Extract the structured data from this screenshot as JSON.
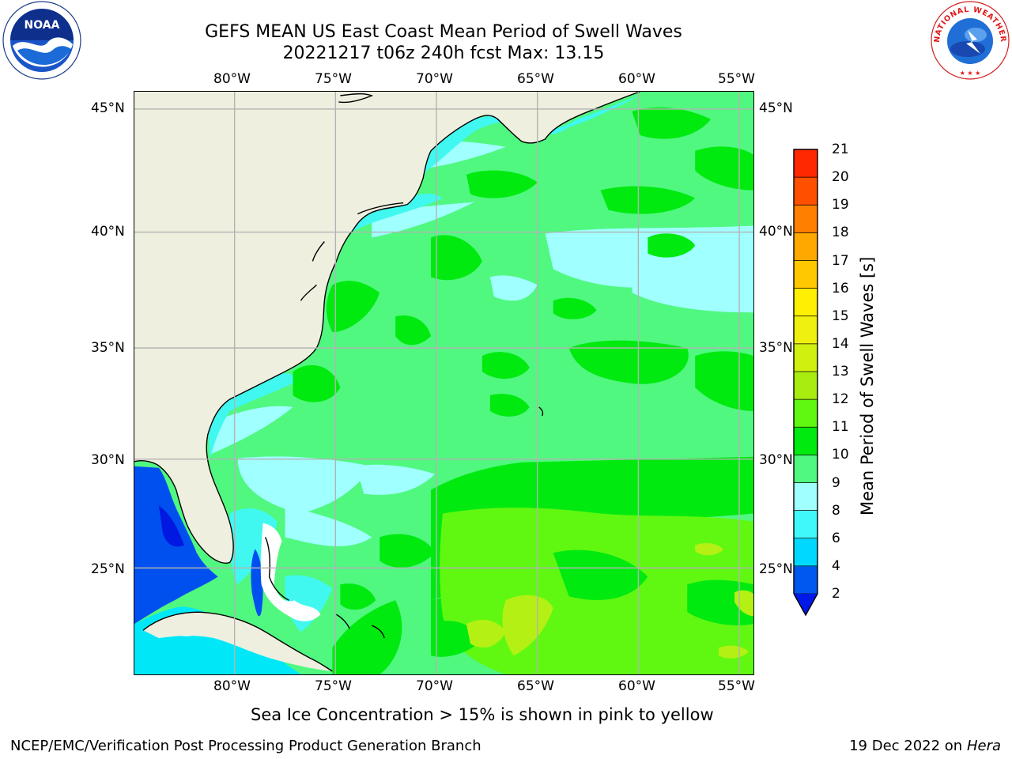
{
  "header": {
    "title_line1": "GEFS MEAN US East Coast Mean Period of Swell Waves",
    "title_line2": "20221217 t06z 240h fcst   Max: 13.15"
  },
  "logos": {
    "noaa": {
      "text": "NOAA"
    },
    "nws": {
      "text": "NATIONAL WEATHER SERVICE"
    }
  },
  "map": {
    "lon_labels": [
      "80°W",
      "75°W",
      "70°W",
      "65°W",
      "60°W",
      "55°W"
    ],
    "lat_labels": [
      "45°N",
      "40°N",
      "35°N",
      "30°N",
      "25°N"
    ],
    "colors": {
      "land": "#efefdf",
      "grid": "#b3b3b3",
      "period_4": "#00e8f8",
      "period_6": "#40f8f0",
      "period_8": "#a0ffff",
      "period_9": "#50f880",
      "period_10": "#00ea10",
      "period_11": "#60f810",
      "period_12": "#b4f014",
      "blue_2": "#0050f0",
      "blue_deep": "#0018e0"
    }
  },
  "colorbar": {
    "label": "Mean Period of Swell Waves [s]",
    "ticks": [
      "2",
      "4",
      "6",
      "8",
      "9",
      "10",
      "11",
      "12",
      "13",
      "14",
      "15",
      "16",
      "17",
      "18",
      "19",
      "20",
      "21"
    ],
    "colors": [
      "#0058f0",
      "#00d8ff",
      "#40f8f8",
      "#a0ffff",
      "#50f880",
      "#00ea10",
      "#60f810",
      "#a8ec10",
      "#d0f010",
      "#f0f010",
      "#ffef00",
      "#ffc800",
      "#ffa800",
      "#ff8000",
      "#ff5000",
      "#ff2800"
    ],
    "extend_color": "#0018e8"
  },
  "footer": {
    "note": "Sea Ice Concentration > 15% is shown in pink to yellow",
    "credit": "NCEP/EMC/Verification Post Processing Product Generation Branch",
    "date": "19 Dec 2022 on",
    "host": "Hera"
  }
}
